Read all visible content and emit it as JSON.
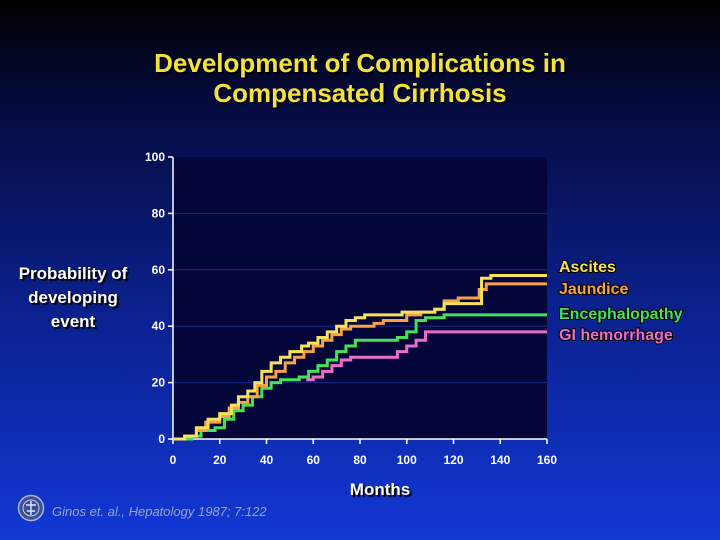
{
  "title_line1": "Development of  Complications in",
  "title_line2": "Compensated Cirrhosis",
  "citation": "Ginos et. al., Hepatology 1987; 7:122",
  "logo_icon": "journal-seal-icon",
  "colors": {
    "plot_bg": "#04063a",
    "ascites": "#f7e25a",
    "jaundice": "#f7a24a",
    "encephalopathy": "#47e05a",
    "gi_hemorrhage": "#e96ec8"
  },
  "chart_data": {
    "type": "line",
    "title": "Development of Complications in Compensated Cirrhosis",
    "xlabel": "Months",
    "ylabel_lines": [
      "Probability of",
      "developing",
      "event"
    ],
    "xlim": [
      0,
      160
    ],
    "ylim": [
      0,
      100
    ],
    "xticks": [
      0,
      20,
      40,
      60,
      80,
      100,
      120,
      140,
      160
    ],
    "yticks": [
      0,
      20,
      40,
      60,
      80,
      100
    ],
    "legend_placement": "right",
    "series": [
      {
        "name": "Ascites",
        "color": "#f7e25a",
        "points": [
          [
            0,
            0
          ],
          [
            5,
            1
          ],
          [
            10,
            4
          ],
          [
            15,
            7
          ],
          [
            20,
            9
          ],
          [
            25,
            12
          ],
          [
            28,
            15
          ],
          [
            32,
            17
          ],
          [
            35,
            20
          ],
          [
            38,
            24
          ],
          [
            42,
            27
          ],
          [
            46,
            29
          ],
          [
            50,
            31
          ],
          [
            55,
            33
          ],
          [
            58,
            34
          ],
          [
            62,
            36
          ],
          [
            66,
            38
          ],
          [
            70,
            40
          ],
          [
            74,
            42
          ],
          [
            78,
            43
          ],
          [
            82,
            44
          ],
          [
            88,
            44
          ],
          [
            94,
            44
          ],
          [
            98,
            45
          ],
          [
            104,
            45
          ],
          [
            108,
            45
          ],
          [
            112,
            46
          ],
          [
            116,
            48
          ],
          [
            122,
            48
          ],
          [
            126,
            48
          ],
          [
            130,
            48
          ],
          [
            132,
            57
          ],
          [
            136,
            58
          ],
          [
            150,
            58
          ],
          [
            160,
            58
          ]
        ]
      },
      {
        "name": "Jaundice",
        "color": "#f7a24a",
        "points": [
          [
            0,
            0
          ],
          [
            5,
            1
          ],
          [
            10,
            3
          ],
          [
            14,
            6
          ],
          [
            20,
            8
          ],
          [
            24,
            11
          ],
          [
            28,
            13
          ],
          [
            32,
            15
          ],
          [
            36,
            19
          ],
          [
            40,
            22
          ],
          [
            44,
            24
          ],
          [
            48,
            27
          ],
          [
            52,
            29
          ],
          [
            56,
            31
          ],
          [
            60,
            33
          ],
          [
            64,
            35
          ],
          [
            68,
            37
          ],
          [
            72,
            39
          ],
          [
            76,
            40
          ],
          [
            80,
            40
          ],
          [
            86,
            41
          ],
          [
            90,
            42
          ],
          [
            96,
            42
          ],
          [
            100,
            44
          ],
          [
            106,
            45
          ],
          [
            112,
            46
          ],
          [
            116,
            49
          ],
          [
            122,
            50
          ],
          [
            130,
            50
          ],
          [
            131,
            53
          ],
          [
            134,
            55
          ],
          [
            145,
            55
          ],
          [
            160,
            55
          ]
        ]
      },
      {
        "name": "Encephalopathy",
        "color": "#47e05a",
        "points": [
          [
            0,
            0
          ],
          [
            8,
            1
          ],
          [
            12,
            3
          ],
          [
            18,
            4
          ],
          [
            22,
            7
          ],
          [
            26,
            10
          ],
          [
            30,
            12
          ],
          [
            34,
            15
          ],
          [
            38,
            18
          ],
          [
            42,
            20
          ],
          [
            46,
            21
          ],
          [
            50,
            21
          ],
          [
            54,
            22
          ],
          [
            58,
            24
          ],
          [
            62,
            26
          ],
          [
            66,
            28
          ],
          [
            70,
            31
          ],
          [
            74,
            33
          ],
          [
            78,
            35
          ],
          [
            82,
            35
          ],
          [
            90,
            35
          ],
          [
            96,
            36
          ],
          [
            100,
            38
          ],
          [
            104,
            42
          ],
          [
            108,
            43
          ],
          [
            112,
            43
          ],
          [
            116,
            44
          ],
          [
            130,
            44
          ],
          [
            145,
            44
          ],
          [
            160,
            44
          ]
        ]
      },
      {
        "name": "GI hemorrhage",
        "color": "#e96ec8",
        "points": [
          [
            57,
            21
          ],
          [
            60,
            22
          ],
          [
            64,
            24
          ],
          [
            68,
            26
          ],
          [
            72,
            28
          ],
          [
            76,
            29
          ],
          [
            80,
            29
          ],
          [
            86,
            29
          ],
          [
            92,
            29
          ],
          [
            96,
            31
          ],
          [
            100,
            33
          ],
          [
            104,
            35
          ],
          [
            108,
            38
          ],
          [
            114,
            38
          ],
          [
            130,
            38
          ],
          [
            145,
            38
          ],
          [
            160,
            38
          ]
        ]
      }
    ]
  }
}
